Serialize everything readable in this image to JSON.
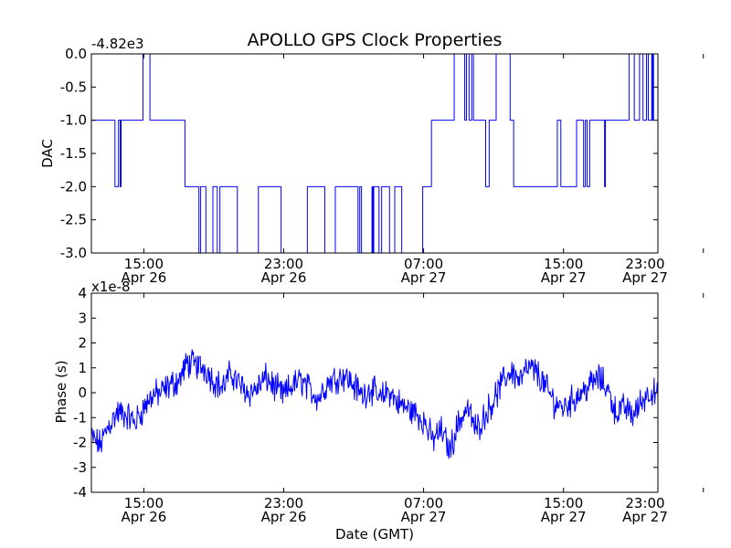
{
  "figure": {
    "title": "APOLLO GPS Clock Properties",
    "line_color": "#0000ff"
  },
  "chart_data": [
    {
      "type": "line",
      "ylabel": "DAC",
      "offset_label": "-4.82e3",
      "ylim": [
        -3.0,
        0.0
      ],
      "y_ticks": [
        "0.0",
        "-0.5",
        "-1.0",
        "-1.5",
        "-2.0",
        "-2.5",
        "-3.0"
      ],
      "y_tick_values": [
        0.0,
        -0.5,
        -1.0,
        -1.5,
        -2.0,
        -2.5,
        -3.0
      ],
      "x_tick_times": [
        "15:00",
        "23:00",
        "07:00",
        "15:00",
        "23:00"
      ],
      "x_tick_dates": [
        "Apr 26",
        "Apr 26",
        "Apr 27",
        "Apr 27",
        "Apr 27"
      ],
      "x_range_hours": [
        12.0,
        44.4
      ],
      "x_tick_hours": [
        15,
        23,
        31,
        39,
        47
      ],
      "series": [
        {
          "values_note": "hours after Apr 26 00:00 GMT; y in DAC units (offset -4.82e3)",
          "x": [
            12.0,
            13.3,
            13.35,
            13.5,
            13.55,
            13.6,
            13.65,
            13.7,
            14.9,
            14.95,
            15.2,
            15.3,
            15.35,
            17.3,
            17.35,
            18.1,
            18.15,
            18.2,
            18.25,
            18.5,
            18.55,
            18.9,
            18.95,
            19.15,
            19.2,
            19.3,
            19.35,
            20.3,
            20.35,
            21.5,
            21.55,
            22.8,
            22.85,
            24.3,
            24.35,
            25.3,
            25.35,
            25.9,
            25.95,
            27.2,
            27.25,
            27.3,
            27.35,
            27.4,
            27.45,
            28.0,
            28.05,
            28.1,
            28.15,
            28.4,
            28.45,
            28.55,
            28.6,
            29.0,
            29.05,
            29.3,
            29.35,
            29.7,
            29.75,
            30.9,
            30.95,
            31.4,
            31.45,
            32.0,
            32.05,
            32.7,
            32.75,
            33.3,
            33.35,
            33.4,
            33.45,
            33.55,
            33.6,
            33.7,
            33.75,
            33.8,
            33.85,
            34.5,
            34.55,
            34.7,
            34.75,
            35.1,
            35.15,
            35.9,
            35.95,
            36.1,
            36.15,
            38.6,
            38.65,
            38.8,
            38.85,
            39.7,
            39.75,
            40.1,
            40.15,
            40.2,
            40.25,
            40.3,
            40.35,
            40.45,
            40.5,
            41.0,
            41.05,
            41.3,
            41.35,
            41.4,
            41.45,
            41.7,
            41.75,
            42.7,
            42.75,
            43.0,
            43.05,
            43.3,
            43.35,
            43.5,
            43.55,
            43.7,
            43.75,
            43.8,
            43.85,
            44.0,
            44.05,
            44.1,
            44.15,
            44.4
          ],
          "y": [
            -1.0,
            -1.0,
            -2.0,
            -2.0,
            -1.0,
            -1.0,
            -2.0,
            -1.0,
            -1.0,
            0.0,
            0.0,
            0.0,
            -1.0,
            -1.0,
            -2.0,
            -2.0,
            -3.0,
            -3.0,
            -2.0,
            -2.0,
            -3.0,
            -3.0,
            -2.0,
            -2.0,
            -3.0,
            -3.0,
            -2.0,
            -2.0,
            -3.0,
            -3.0,
            -2.0,
            -2.0,
            -3.0,
            -3.0,
            -2.0,
            -2.0,
            -3.0,
            -3.0,
            -2.0,
            -2.0,
            -3.0,
            -3.0,
            -2.0,
            -2.0,
            -3.0,
            -3.0,
            -2.0,
            -3.0,
            -2.0,
            -2.0,
            -3.0,
            -3.0,
            -2.0,
            -2.0,
            -3.0,
            -3.0,
            -2.0,
            -2.0,
            -3.0,
            -3.0,
            -2.0,
            -2.0,
            -1.0,
            -1.0,
            -1.0,
            -1.0,
            0.0,
            0.0,
            -1.0,
            -1.0,
            0.0,
            0.0,
            -1.0,
            -1.0,
            0.0,
            0.0,
            -1.0,
            -1.0,
            -2.0,
            -2.0,
            -1.0,
            -1.0,
            0.0,
            0.0,
            -1.0,
            -1.0,
            -2.0,
            -2.0,
            -1.0,
            -1.0,
            -2.0,
            -2.0,
            -1.0,
            -1.0,
            -2.0,
            -2.0,
            -1.0,
            -1.0,
            -2.0,
            -2.0,
            -1.0,
            -1.0,
            -1.0,
            -1.0,
            -2.0,
            -1.0,
            -1.0,
            -1.0,
            -1.0,
            -1.0,
            0.0,
            0.0,
            -1.0,
            -1.0,
            0.0,
            0.0,
            -1.0,
            -1.0,
            0.0,
            0.0,
            -1.0,
            -1.0,
            0.0,
            -1.0,
            0.0,
            0.0
          ]
        }
      ]
    },
    {
      "type": "line",
      "ylabel": "Phase (s)",
      "xlabel": "Date (GMT)",
      "offset_label": "x1e-8",
      "ylim": [
        -4,
        4
      ],
      "y_ticks": [
        "4",
        "3",
        "2",
        "1",
        "0",
        "-1",
        "-2",
        "-3",
        "-4"
      ],
      "y_tick_values": [
        4,
        3,
        2,
        1,
        0,
        -1,
        -2,
        -3,
        -4
      ],
      "x_tick_times": [
        "15:00",
        "23:00",
        "07:00",
        "15:00",
        "23:00"
      ],
      "x_tick_dates": [
        "Apr 26",
        "Apr 26",
        "Apr 27",
        "Apr 27",
        "Apr 27"
      ],
      "x_range_hours": [
        12.0,
        44.4
      ],
      "x_tick_hours": [
        15,
        23,
        31,
        39,
        47
      ],
      "series": [
        {
          "values_note": "trend of noisy phase trace in units of 1e-8 s; rendered with added jitter",
          "x": [
            12.0,
            12.5,
            13.0,
            13.5,
            14.0,
            14.5,
            15.0,
            15.5,
            16.0,
            16.5,
            17.0,
            17.5,
            18.0,
            18.5,
            19.0,
            19.5,
            20.0,
            20.5,
            21.0,
            21.5,
            22.0,
            22.5,
            23.0,
            23.5,
            24.0,
            24.5,
            25.0,
            25.5,
            26.0,
            26.5,
            27.0,
            27.5,
            28.0,
            28.5,
            29.0,
            29.5,
            30.0,
            30.5,
            31.0,
            31.5,
            32.0,
            32.5,
            33.0,
            33.5,
            34.0,
            34.5,
            35.0,
            35.5,
            36.0,
            36.5,
            37.0,
            37.5,
            38.0,
            38.5,
            39.0,
            39.5,
            40.0,
            40.5,
            41.0,
            41.5,
            42.0,
            42.5,
            43.0,
            43.5,
            44.0,
            44.4
          ],
          "y": [
            -1.8,
            -2.1,
            -1.3,
            -0.8,
            -0.9,
            -1.2,
            -0.6,
            -0.1,
            0.0,
            0.3,
            0.5,
            1.2,
            1.1,
            1.0,
            0.5,
            0.2,
            0.8,
            0.3,
            0.0,
            0.2,
            0.6,
            0.2,
            -0.1,
            0.3,
            0.5,
            0.1,
            -0.2,
            0.4,
            0.6,
            0.7,
            0.3,
            -0.1,
            0.2,
            -0.3,
            0.1,
            -0.4,
            -0.6,
            -0.8,
            -1.1,
            -1.9,
            -1.5,
            -2.3,
            -1.2,
            -0.6,
            -1.5,
            -0.9,
            -0.3,
            0.4,
            0.9,
            0.5,
            1.0,
            0.8,
            0.2,
            -0.4,
            -0.6,
            -0.3,
            0.0,
            0.3,
            0.6,
            0.2,
            -0.8,
            -0.6,
            -0.9,
            -0.3,
            0.1,
            -0.2
          ]
        }
      ]
    }
  ]
}
